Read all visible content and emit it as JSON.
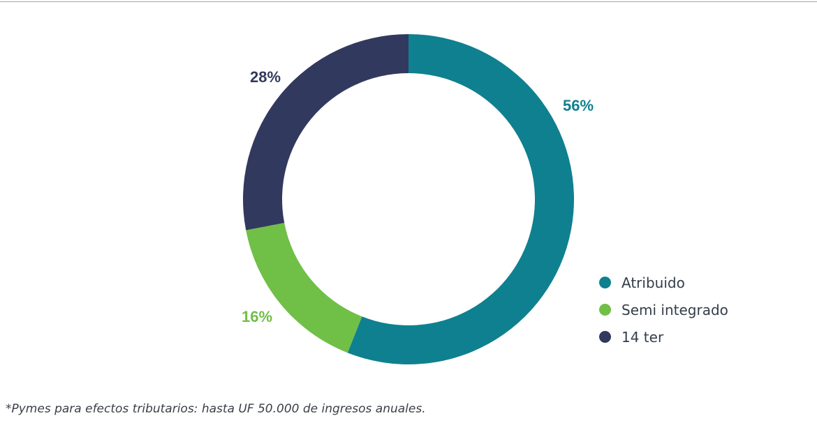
{
  "chart_data": {
    "type": "pie",
    "donut": true,
    "title": "",
    "series": [
      {
        "name": "Atribuido",
        "value": 56,
        "label": "56%",
        "color": "#0f808f"
      },
      {
        "name": "Semi integrado",
        "value": 16,
        "label": "16%",
        "color": "#70bf47"
      },
      {
        "name": "14 ter",
        "value": 28,
        "label": "28%",
        "color": "#32395e"
      }
    ],
    "legend": {
      "position": "bottom-right",
      "items": [
        {
          "label": "Atribuido",
          "color": "#0f808f"
        },
        {
          "label": "Semi integrado",
          "color": "#70bf47"
        },
        {
          "label": "14 ter",
          "color": "#32395e"
        }
      ]
    }
  },
  "footnote": "*Pymes para efectos tributarios: hasta UF 50.000 de ingresos anuales."
}
